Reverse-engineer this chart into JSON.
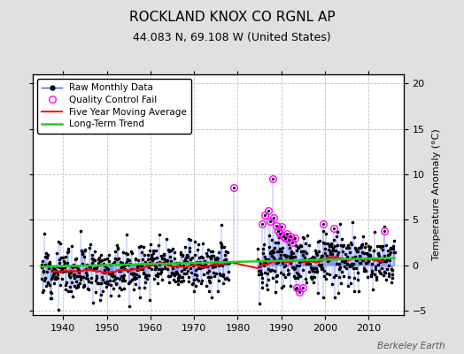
{
  "title": "ROCKLAND KNOX CO RGNL AP",
  "subtitle": "44.083 N, 69.108 W (United States)",
  "ylabel": "Temperature Anomaly (°C)",
  "watermark": "Berkeley Earth",
  "xlim": [
    1933,
    2018
  ],
  "ylim": [
    -5.5,
    21
  ],
  "yticks": [
    -5,
    0,
    5,
    10,
    15,
    20
  ],
  "xticks": [
    1940,
    1950,
    1960,
    1970,
    1980,
    1990,
    2000,
    2010
  ],
  "seed": 12,
  "x_start": 1935.0,
  "x_end": 2015.9,
  "n_months": 972,
  "bg_color": "#e0e0e0",
  "plot_bg_color": "#ffffff",
  "line_color": "#3355ff",
  "dot_color": "#000000",
  "ma_color": "#ff0000",
  "trend_color": "#22cc22",
  "qc_color": "#ff00ff",
  "title_fontsize": 11,
  "subtitle_fontsize": 9,
  "legend_fontsize": 7.5,
  "grid_color": "#c0c0c0"
}
